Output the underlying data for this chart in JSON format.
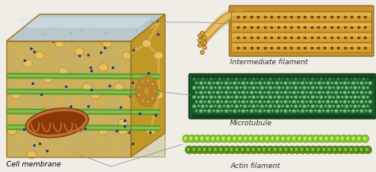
{
  "background_color": "#f0ede6",
  "figsize": [
    4.74,
    2.17
  ],
  "dpi": 100,
  "labels": {
    "cell_membrane": "Cell membrane",
    "intermediate_filament": "Intermediate filament",
    "microtubule": "Microtubule",
    "actin_filament": "Actin filament"
  },
  "label_fontsize": 6.5,
  "connector_color": "#888888",
  "connector_lw": 0.5,
  "cell_gold": "#d4a030",
  "cell_gold_dark": "#a07820",
  "cell_gold_light": "#e8c060",
  "membrane_blue": "#b8cce0",
  "membrane_blue_dark": "#8aaac8",
  "mito_outer": "#7a3a10",
  "mito_inner": "#c06820",
  "mito_fold": "#5a2808",
  "green_band": "#5a9a30",
  "dot_blue": "#303878",
  "if_gold": "#d4a030",
  "if_gold_dark": "#a07010",
  "if_brown": "#8a3808",
  "mt_green_dark": "#1a5a2a",
  "mt_green_mid": "#2a7a3a",
  "mt_green_light": "#5aaa6a",
  "mt_green_highlight": "#8acc8a",
  "ac_green_light": "#8acc30",
  "ac_green_dark": "#5a9010"
}
